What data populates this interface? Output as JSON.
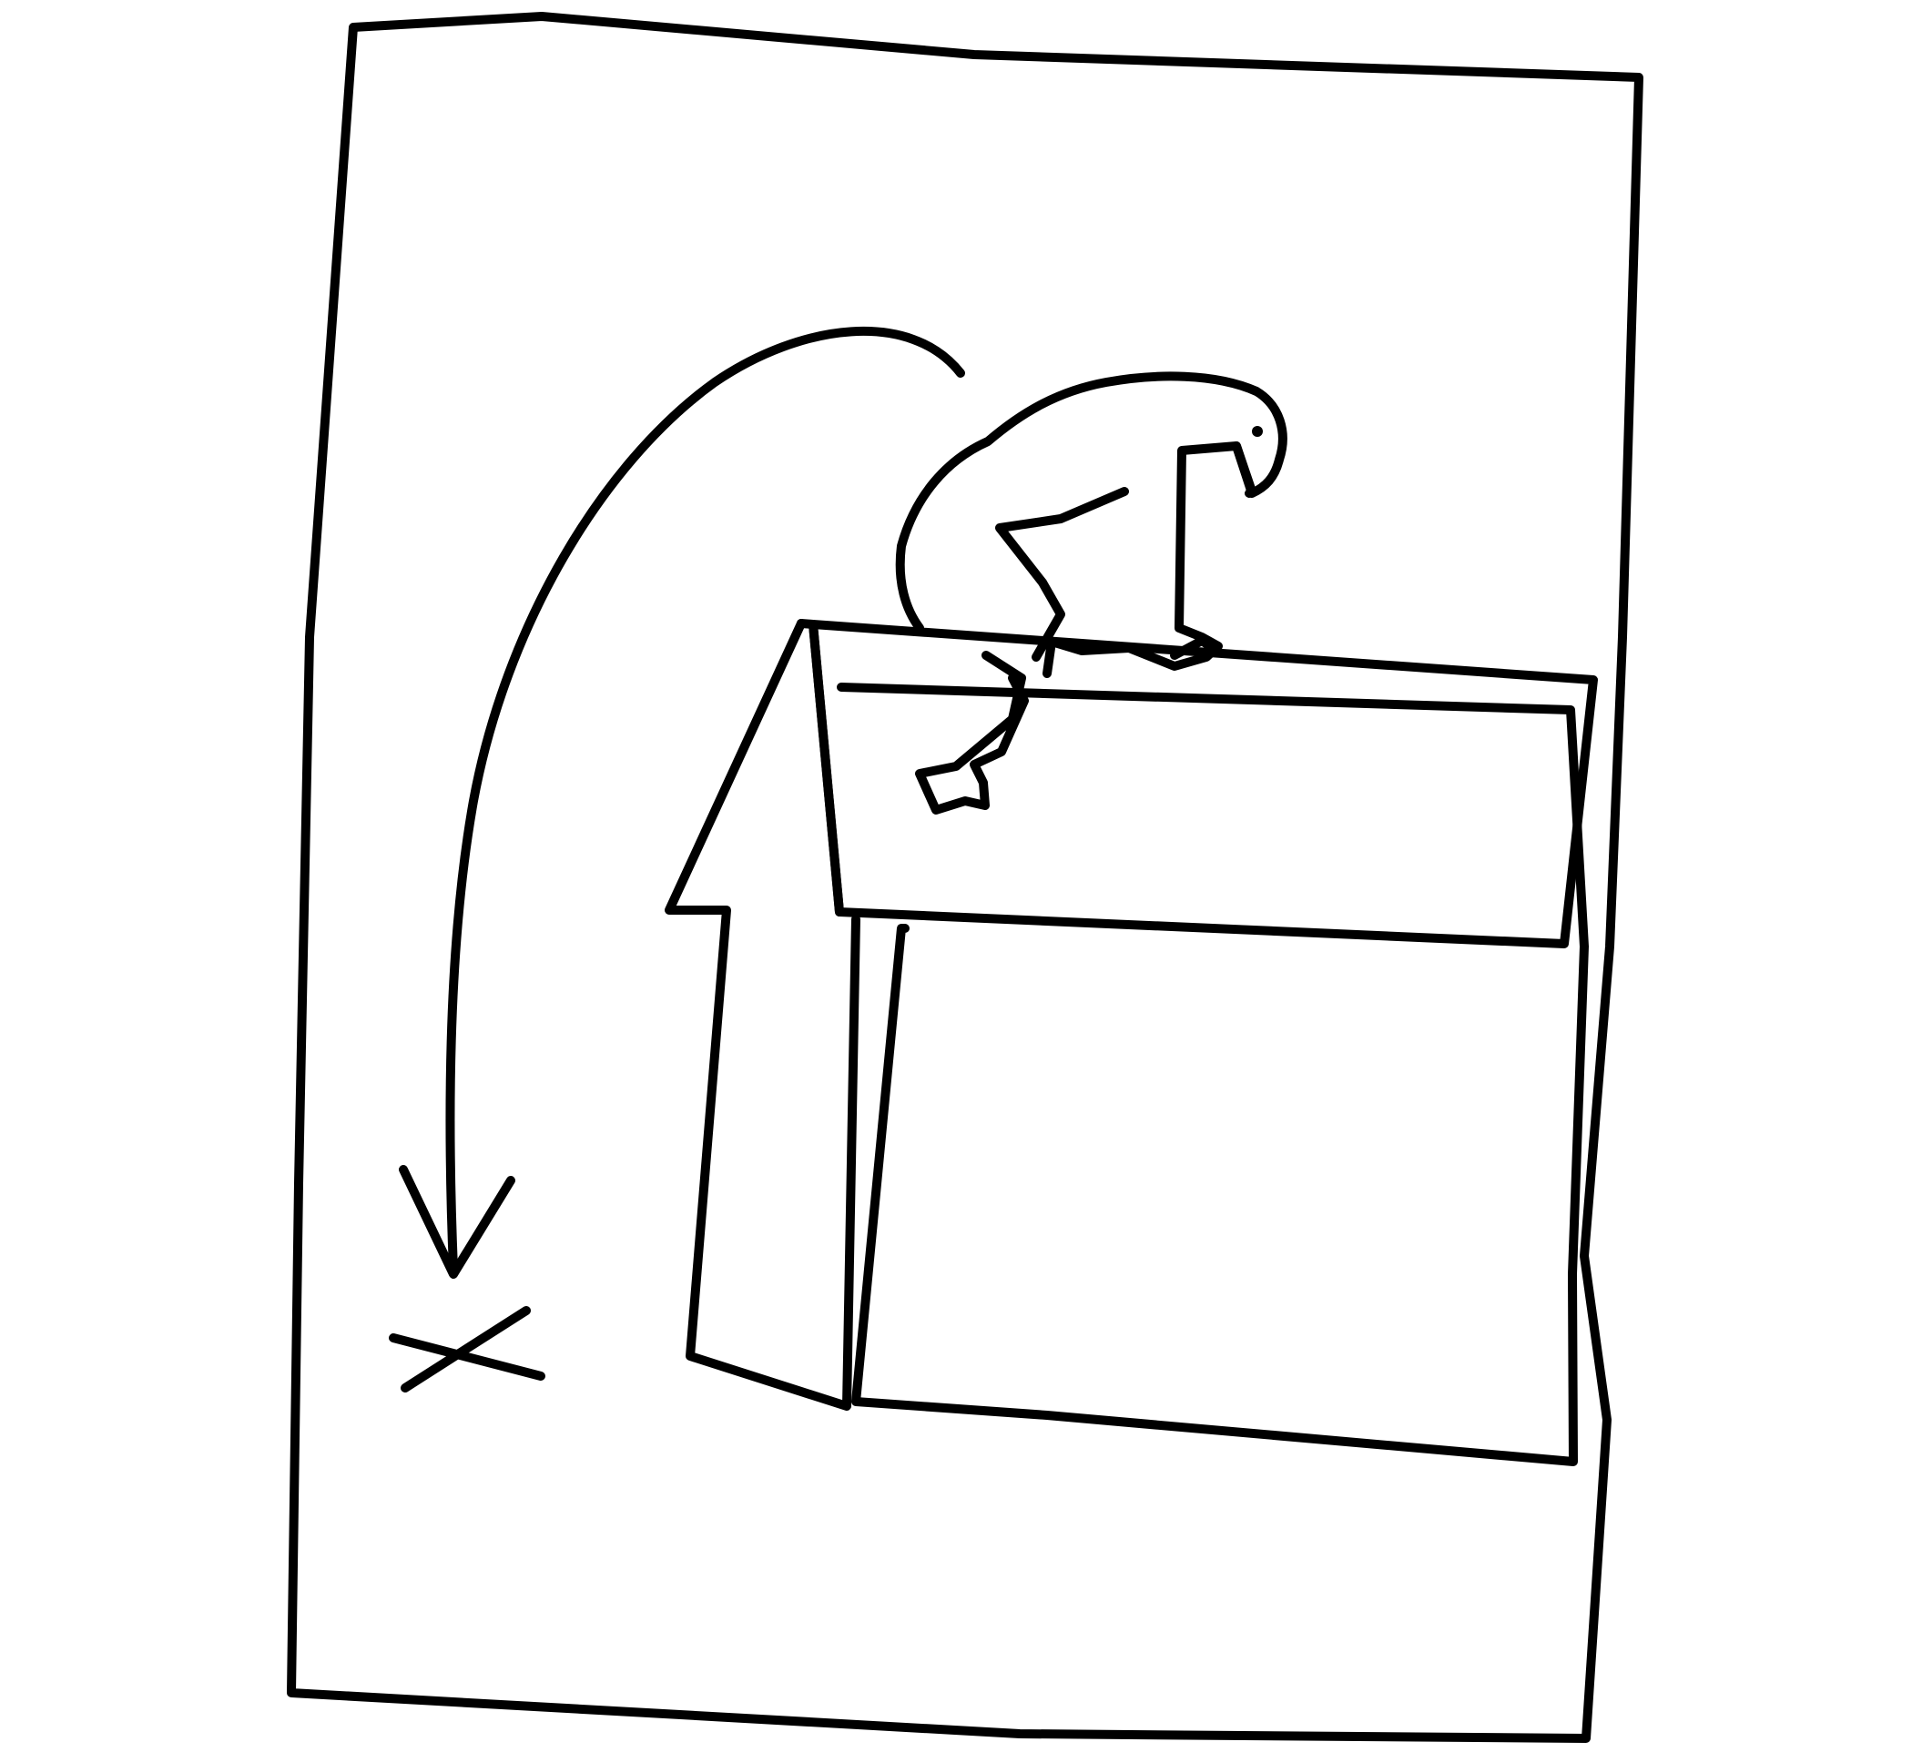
{
  "image": {
    "kind": "line-drawing",
    "ink_color": "#000000",
    "paper_color": "#ffffff"
  }
}
